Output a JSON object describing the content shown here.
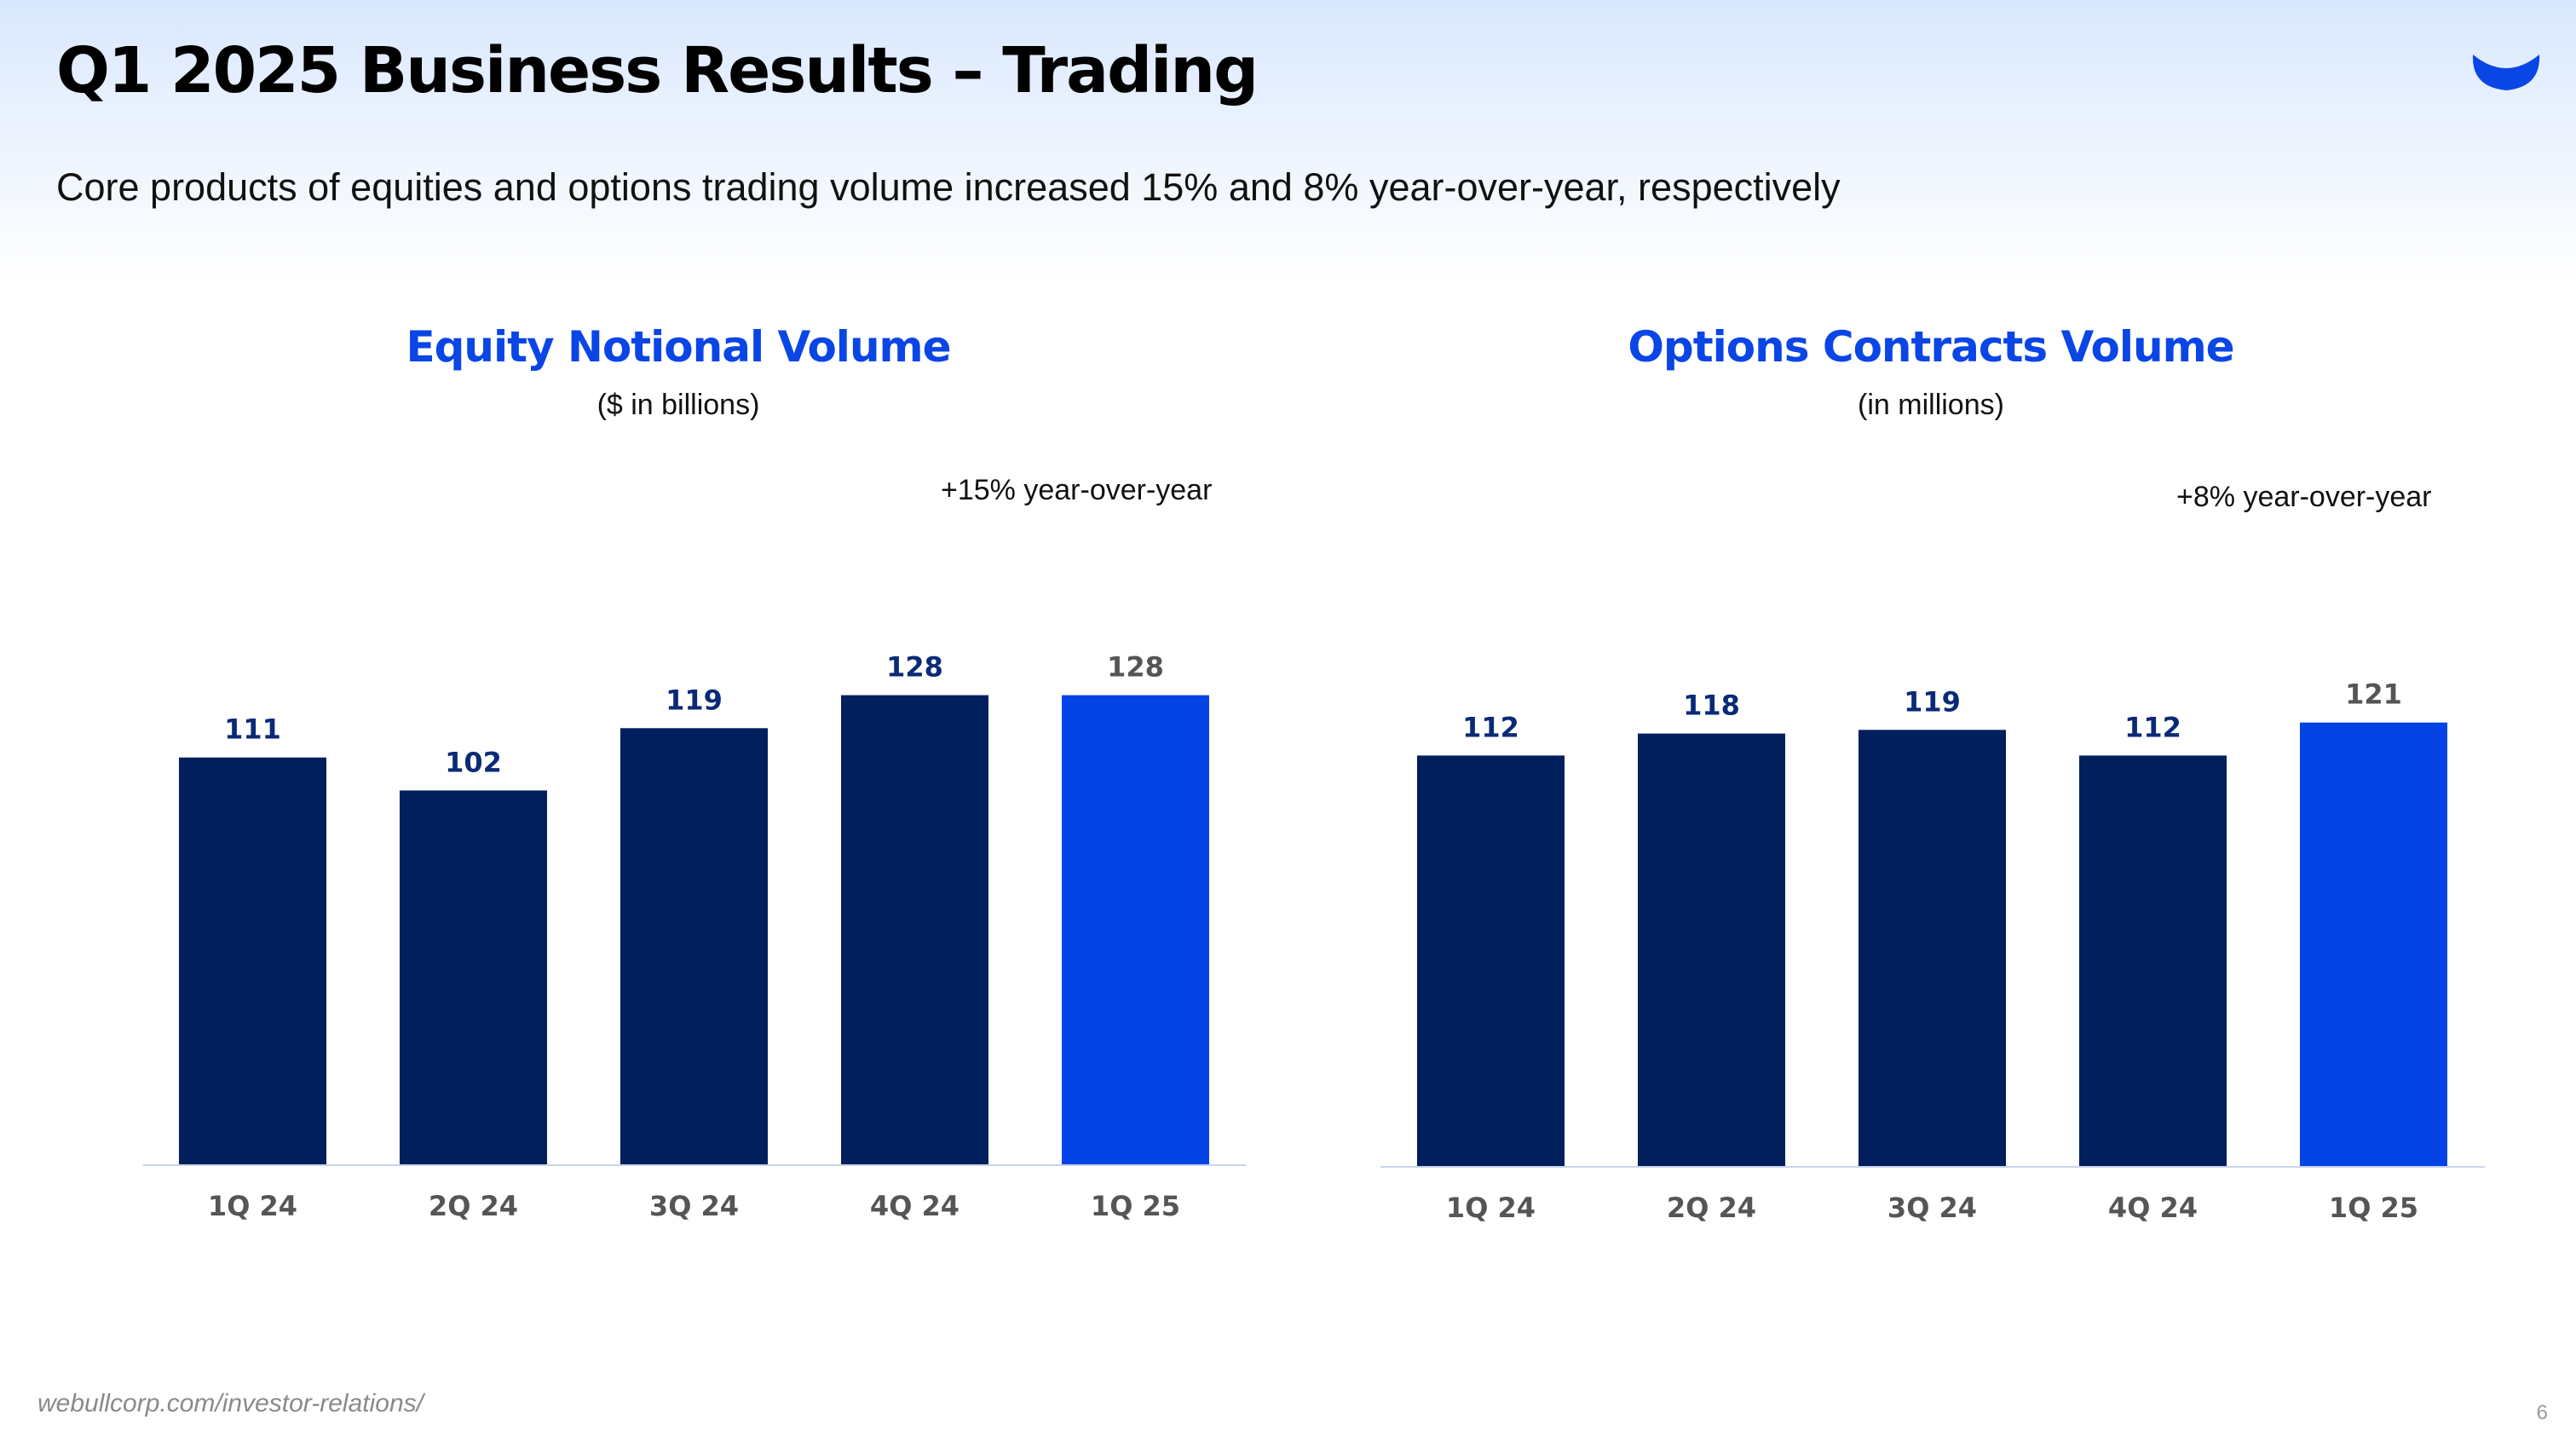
{
  "header": {
    "title": "Q1 2025 Business Results – Trading",
    "subtitle": "Core products of equities and options trading volume increased 15% and 8% year-over-year, respectively"
  },
  "logo": {
    "icon": "webull-logo-icon",
    "color": "#0a45e6"
  },
  "colors": {
    "title_blue": "#0a45e6",
    "bar_navy": "#001f5c",
    "bar_highlight": "#0444e6",
    "label_navy": "#0a2a78",
    "label_highlight": "#555555",
    "axis_line": "#c8d4ea",
    "tick_label": "#555555"
  },
  "chart_data": [
    {
      "type": "bar",
      "title": "Equity Notional Volume",
      "unit_label": "($ in billions)",
      "annotation": "+15% year-over-year",
      "categories": [
        "1Q 24",
        "2Q 24",
        "3Q 24",
        "4Q 24",
        "1Q 25"
      ],
      "values": [
        111,
        102,
        119,
        128,
        128
      ],
      "highlight_index": 4,
      "ylim": [
        0,
        140
      ],
      "xlabel": "",
      "ylabel": ""
    },
    {
      "type": "bar",
      "title": "Options Contracts Volume",
      "unit_label": "(in millions)",
      "annotation": "+8% year-over-year",
      "categories": [
        "1Q 24",
        "2Q 24",
        "3Q 24",
        "4Q 24",
        "1Q 25"
      ],
      "values": [
        112,
        118,
        119,
        112,
        121
      ],
      "highlight_index": 4,
      "ylim": [
        0,
        140
      ],
      "xlabel": "",
      "ylabel": ""
    }
  ],
  "footer": {
    "source": "webullcorp.com/investor-relations/",
    "page_number": "6"
  }
}
